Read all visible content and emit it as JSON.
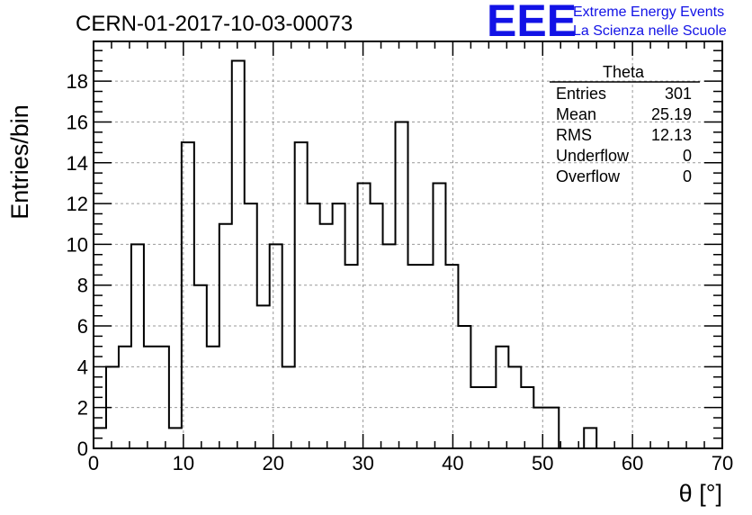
{
  "logo": {
    "mark": "EEE",
    "line1": "Extreme Energy Events",
    "line2": "La Scienza nelle Scuole",
    "color": "#1212e6"
  },
  "chart_data": {
    "type": "bar",
    "histogram": true,
    "title": "CERN-01-2017-10-03-00073",
    "xlabel": "θ [°]",
    "ylabel": "Entries/bin",
    "xlim": [
      0,
      70
    ],
    "ylim": [
      0,
      19.95
    ],
    "grid": true,
    "bin_width": 1.4,
    "x_ticks": [
      0,
      10,
      20,
      30,
      40,
      50,
      60,
      70
    ],
    "y_ticks": [
      0,
      2,
      4,
      6,
      8,
      10,
      12,
      14,
      16,
      18
    ],
    "values": [
      1,
      4,
      5,
      10,
      5,
      5,
      1,
      15,
      8,
      5,
      11,
      19,
      12,
      7,
      10,
      4,
      15,
      12,
      11,
      12,
      9,
      13,
      12,
      10,
      16,
      9,
      9,
      13,
      9,
      6,
      3,
      3,
      5,
      4,
      3,
      2,
      2,
      0,
      0,
      1
    ],
    "stats_box": {
      "name": "Theta",
      "position": "top-right",
      "rows": [
        {
          "label": "Entries",
          "value": "301"
        },
        {
          "label": "Mean",
          "value": "25.19"
        },
        {
          "label": "RMS",
          "value": "12.13"
        },
        {
          "label": "Underflow",
          "value": "0"
        },
        {
          "label": "Overflow",
          "value": "0"
        }
      ]
    }
  }
}
